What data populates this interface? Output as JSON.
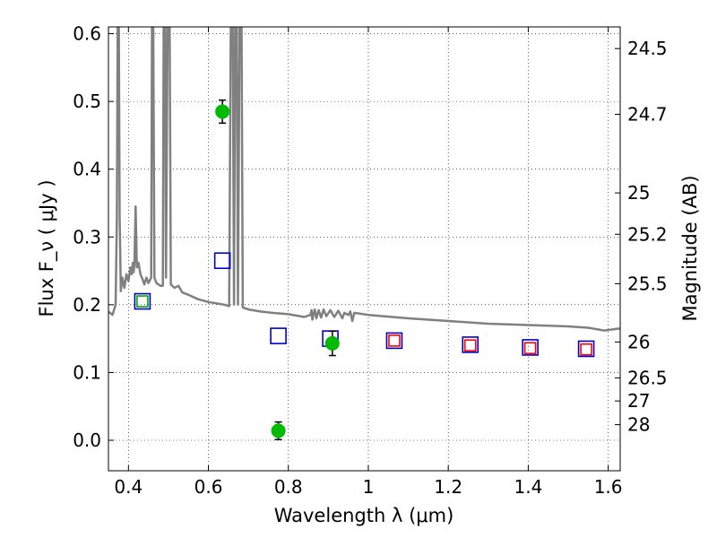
{
  "chart_data": {
    "type": "scatter",
    "xlabel": "Wavelength  λ (μm)",
    "ylabel": "Flux  F_ν  ( μJy )",
    "ylabel_right": "Magnitude (AB)",
    "xlim": [
      0.35,
      1.63
    ],
    "ylim": [
      -0.045,
      0.61
    ],
    "grid": true,
    "x_ticks": [
      0.4,
      0.6,
      0.8,
      1.0,
      1.2,
      1.4,
      1.6
    ],
    "x_tick_labels": [
      "0.4",
      "0.6",
      "0.8",
      "1",
      "1.2",
      "1.4",
      "1.6"
    ],
    "y_ticks": [
      0.0,
      0.1,
      0.2,
      0.3,
      0.4,
      0.5,
      0.6
    ],
    "y_tick_labels": [
      "0.0",
      "0.1",
      "0.2",
      "0.3",
      "0.4",
      "0.5",
      "0.6"
    ],
    "right_ticks": [
      {
        "label": "24.5",
        "flux": 0.578
      },
      {
        "label": "24.7",
        "flux": 0.481
      },
      {
        "label": "25",
        "flux": 0.365
      },
      {
        "label": "25.2",
        "flux": 0.304
      },
      {
        "label": "25.5",
        "flux": 0.231
      },
      {
        "label": "26",
        "flux": 0.145
      },
      {
        "label": "26.5",
        "flux": 0.092
      },
      {
        "label": "27",
        "flux": 0.058
      },
      {
        "label": "28",
        "flux": 0.023
      }
    ],
    "series": [
      {
        "kind": "observed",
        "color": "#00bb00",
        "points": [
          {
            "x": 0.635,
            "y": 0.485,
            "err": 0.017
          },
          {
            "x": 0.775,
            "y": 0.014,
            "err": 0.013
          },
          {
            "x": 0.91,
            "y": 0.143,
            "err": 0.018
          }
        ]
      },
      {
        "kind": "model-blue",
        "color": "#0000cc",
        "points": [
          {
            "x": 0.435,
            "y": 0.205
          },
          {
            "x": 0.635,
            "y": 0.265
          },
          {
            "x": 0.775,
            "y": 0.154
          },
          {
            "x": 0.905,
            "y": 0.15
          },
          {
            "x": 1.065,
            "y": 0.147
          },
          {
            "x": 1.255,
            "y": 0.141
          },
          {
            "x": 1.405,
            "y": 0.137
          },
          {
            "x": 1.545,
            "y": 0.135
          }
        ]
      },
      {
        "kind": "model-red",
        "color": "#ff0000",
        "points": [
          {
            "x": 1.065,
            "y": 0.147
          },
          {
            "x": 1.255,
            "y": 0.14
          },
          {
            "x": 1.405,
            "y": 0.136
          },
          {
            "x": 1.545,
            "y": 0.134
          }
        ]
      },
      {
        "kind": "model-green",
        "color": "#00aa00",
        "points": [
          {
            "x": 0.435,
            "y": 0.205
          }
        ]
      }
    ],
    "spectrum": {
      "color": "#808080",
      "points": [
        [
          0.35,
          0.19
        ],
        [
          0.36,
          0.185
        ],
        [
          0.368,
          0.2
        ],
        [
          0.371,
          0.33
        ],
        [
          0.373,
          0.61
        ],
        [
          0.376,
          0.61
        ],
        [
          0.378,
          0.33
        ],
        [
          0.381,
          0.22
        ],
        [
          0.385,
          0.24
        ],
        [
          0.39,
          0.225
        ],
        [
          0.395,
          0.245
        ],
        [
          0.4,
          0.235
        ],
        [
          0.405,
          0.255
        ],
        [
          0.408,
          0.245
        ],
        [
          0.411,
          0.262
        ],
        [
          0.413,
          0.248
        ],
        [
          0.415,
          0.26
        ],
        [
          0.418,
          0.345
        ],
        [
          0.421,
          0.255
        ],
        [
          0.425,
          0.262
        ],
        [
          0.43,
          0.245
        ],
        [
          0.435,
          0.238
        ],
        [
          0.44,
          0.23
        ],
        [
          0.445,
          0.24
        ],
        [
          0.45,
          0.232
        ],
        [
          0.457,
          0.24
        ],
        [
          0.459,
          0.61
        ],
        [
          0.462,
          0.61
        ],
        [
          0.465,
          0.24
        ],
        [
          0.47,
          0.232
        ],
        [
          0.48,
          0.228
        ],
        [
          0.486,
          0.228
        ],
        [
          0.488,
          0.61
        ],
        [
          0.492,
          0.61
        ],
        [
          0.494,
          0.24
        ],
        [
          0.498,
          0.61
        ],
        [
          0.503,
          0.61
        ],
        [
          0.506,
          0.23
        ],
        [
          0.515,
          0.225
        ],
        [
          0.525,
          0.228
        ],
        [
          0.535,
          0.218
        ],
        [
          0.545,
          0.216
        ],
        [
          0.56,
          0.212
        ],
        [
          0.575,
          0.208
        ],
        [
          0.6,
          0.204
        ],
        [
          0.64,
          0.2
        ],
        [
          0.652,
          0.198
        ],
        [
          0.656,
          0.61
        ],
        [
          0.661,
          0.61
        ],
        [
          0.664,
          0.2
        ],
        [
          0.667,
          0.61
        ],
        [
          0.671,
          0.61
        ],
        [
          0.674,
          0.2
        ],
        [
          0.678,
          0.61
        ],
        [
          0.683,
          0.61
        ],
        [
          0.686,
          0.196
        ],
        [
          0.7,
          0.193
        ],
        [
          0.73,
          0.19
        ],
        [
          0.76,
          0.188
        ],
        [
          0.8,
          0.186
        ],
        [
          0.84,
          0.182
        ],
        [
          0.855,
          0.185
        ],
        [
          0.858,
          0.192
        ],
        [
          0.86,
          0.178
        ],
        [
          0.866,
          0.193
        ],
        [
          0.87,
          0.18
        ],
        [
          0.876,
          0.192
        ],
        [
          0.882,
          0.181
        ],
        [
          0.888,
          0.193
        ],
        [
          0.895,
          0.183
        ],
        [
          0.905,
          0.192
        ],
        [
          0.915,
          0.182
        ],
        [
          0.925,
          0.191
        ],
        [
          0.935,
          0.18
        ],
        [
          0.94,
          0.188
        ],
        [
          0.95,
          0.185
        ],
        [
          0.955,
          0.19
        ],
        [
          0.96,
          0.176
        ],
        [
          0.965,
          0.188
        ],
        [
          1.0,
          0.185
        ],
        [
          1.1,
          0.18
        ],
        [
          1.2,
          0.176
        ],
        [
          1.3,
          0.172
        ],
        [
          1.4,
          0.17
        ],
        [
          1.5,
          0.168
        ],
        [
          1.55,
          0.166
        ],
        [
          1.59,
          0.162
        ],
        [
          1.63,
          0.165
        ]
      ]
    }
  }
}
